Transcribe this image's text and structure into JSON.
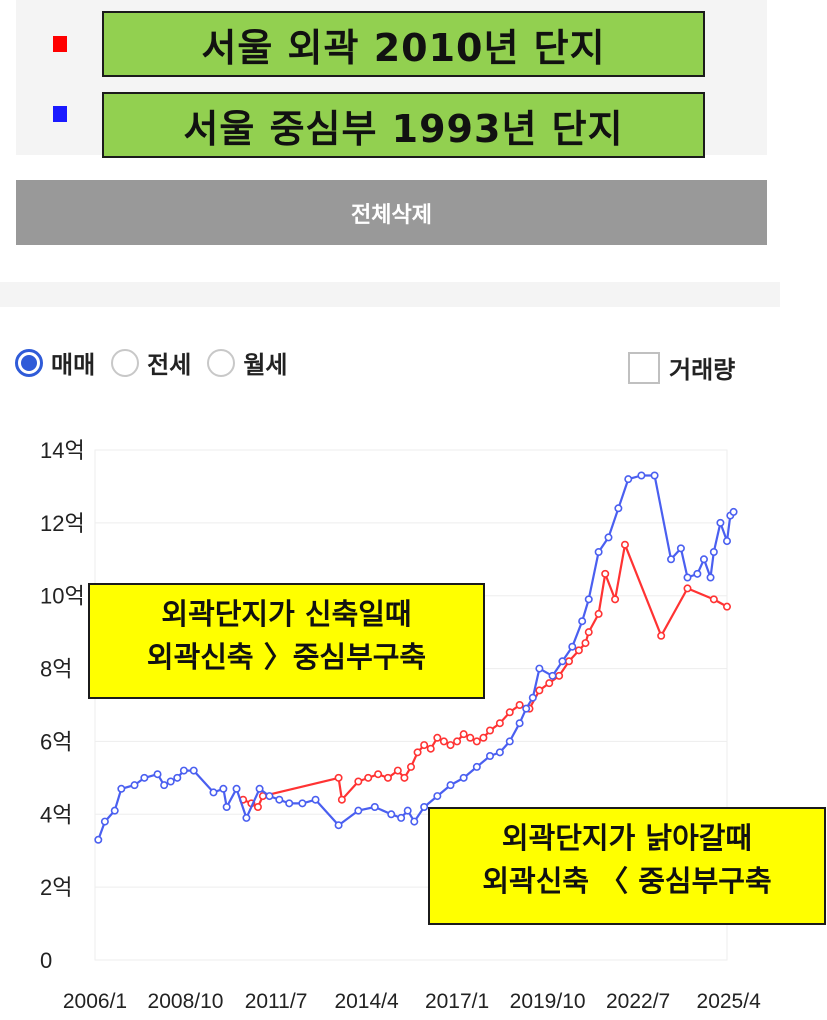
{
  "legend": {
    "items": [
      {
        "label": "서울 외곽 2010년 단지",
        "color": "#ff0000"
      },
      {
        "label": "서울 중심부 1993년 단지",
        "color": "#1a1aff"
      }
    ],
    "label_bg": "#92d050"
  },
  "controls": {
    "delete_all": "전체삭제",
    "radios": [
      {
        "label": "매매",
        "checked": true
      },
      {
        "label": "전세",
        "checked": false
      },
      {
        "label": "월세",
        "checked": false
      }
    ],
    "volume_checkbox": {
      "label": "거래량",
      "checked": false
    }
  },
  "annotations": [
    {
      "lines": [
        "외곽단지가 신축일때",
        "외곽신축 〉중심부구축"
      ],
      "color": "#ffff00"
    },
    {
      "lines": [
        "외곽단지가 낡아갈때",
        "외곽신축 〈 중심부구축"
      ],
      "color": "#ffff00"
    }
  ],
  "chart_data": {
    "type": "line",
    "ylim": [
      0,
      14
    ],
    "yticks": [
      0,
      2,
      4,
      6,
      8,
      10,
      12,
      14
    ],
    "ytick_labels": [
      "0",
      "2억",
      "4억",
      "6억",
      "8억",
      "10억",
      "12억",
      "14억"
    ],
    "xticks": [
      2006.0,
      2008.75,
      2011.5,
      2014.25,
      2017.0,
      2019.75,
      2022.5,
      2025.25
    ],
    "xtick_labels": [
      "2006/1",
      "2008/10",
      "2011/7",
      "2014/4",
      "2017/1",
      "2019/10",
      "2022/7",
      "2025/4"
    ],
    "xlim": [
      2006.0,
      2025.2
    ],
    "grid": true,
    "series": [
      {
        "name": "서울 외곽 2010년 단지",
        "color": "#ff3333",
        "points": [
          [
            2010.5,
            4.4
          ],
          [
            2010.75,
            4.3
          ],
          [
            2010.95,
            4.2
          ],
          [
            2011.1,
            4.5
          ],
          [
            2013.4,
            5.0
          ],
          [
            2013.5,
            4.4
          ],
          [
            2014.0,
            4.9
          ],
          [
            2014.3,
            5.0
          ],
          [
            2014.6,
            5.1
          ],
          [
            2014.9,
            5.0
          ],
          [
            2015.2,
            5.2
          ],
          [
            2015.4,
            5.0
          ],
          [
            2015.6,
            5.3
          ],
          [
            2015.8,
            5.7
          ],
          [
            2016.0,
            5.9
          ],
          [
            2016.2,
            5.8
          ],
          [
            2016.4,
            6.1
          ],
          [
            2016.6,
            6.0
          ],
          [
            2016.8,
            5.9
          ],
          [
            2017.0,
            6.0
          ],
          [
            2017.2,
            6.2
          ],
          [
            2017.4,
            6.1
          ],
          [
            2017.6,
            6.0
          ],
          [
            2017.8,
            6.1
          ],
          [
            2018.0,
            6.3
          ],
          [
            2018.3,
            6.5
          ],
          [
            2018.6,
            6.8
          ],
          [
            2018.9,
            7.0
          ],
          [
            2019.2,
            6.9
          ],
          [
            2019.5,
            7.4
          ],
          [
            2019.8,
            7.6
          ],
          [
            2020.1,
            7.8
          ],
          [
            2020.4,
            8.2
          ],
          [
            2020.7,
            8.5
          ],
          [
            2020.9,
            8.7
          ],
          [
            2021.0,
            9.0
          ],
          [
            2021.3,
            9.5
          ],
          [
            2021.5,
            10.6
          ],
          [
            2021.8,
            9.9
          ],
          [
            2022.1,
            11.4
          ],
          [
            2023.2,
            8.9
          ],
          [
            2024.0,
            10.2
          ],
          [
            2024.8,
            9.9
          ],
          [
            2025.2,
            9.7
          ]
        ]
      },
      {
        "name": "서울 중심부 1993년 단지",
        "color": "#4a5ff0",
        "points": [
          [
            2006.1,
            3.3
          ],
          [
            2006.3,
            3.8
          ],
          [
            2006.6,
            4.1
          ],
          [
            2006.8,
            4.7
          ],
          [
            2007.2,
            4.8
          ],
          [
            2007.5,
            5.0
          ],
          [
            2007.9,
            5.1
          ],
          [
            2008.1,
            4.8
          ],
          [
            2008.3,
            4.9
          ],
          [
            2008.5,
            5.0
          ],
          [
            2008.7,
            5.2
          ],
          [
            2009.0,
            5.2
          ],
          [
            2009.6,
            4.6
          ],
          [
            2009.9,
            4.7
          ],
          [
            2010.0,
            4.2
          ],
          [
            2010.3,
            4.7
          ],
          [
            2010.6,
            3.9
          ],
          [
            2011.0,
            4.7
          ],
          [
            2011.3,
            4.5
          ],
          [
            2011.6,
            4.4
          ],
          [
            2011.9,
            4.3
          ],
          [
            2012.3,
            4.3
          ],
          [
            2012.7,
            4.4
          ],
          [
            2013.4,
            3.7
          ],
          [
            2014.0,
            4.1
          ],
          [
            2014.5,
            4.2
          ],
          [
            2015.0,
            4.0
          ],
          [
            2015.3,
            3.9
          ],
          [
            2015.5,
            4.1
          ],
          [
            2015.7,
            3.8
          ],
          [
            2016.0,
            4.2
          ],
          [
            2016.4,
            4.5
          ],
          [
            2016.8,
            4.8
          ],
          [
            2017.2,
            5.0
          ],
          [
            2017.6,
            5.3
          ],
          [
            2018.0,
            5.6
          ],
          [
            2018.3,
            5.7
          ],
          [
            2018.6,
            6.0
          ],
          [
            2018.9,
            6.5
          ],
          [
            2019.1,
            6.9
          ],
          [
            2019.3,
            7.2
          ],
          [
            2019.5,
            8.0
          ],
          [
            2019.9,
            7.8
          ],
          [
            2020.2,
            8.2
          ],
          [
            2020.5,
            8.6
          ],
          [
            2020.8,
            9.3
          ],
          [
            2021.0,
            9.9
          ],
          [
            2021.3,
            11.2
          ],
          [
            2021.6,
            11.6
          ],
          [
            2021.9,
            12.4
          ],
          [
            2022.2,
            13.2
          ],
          [
            2022.6,
            13.3
          ],
          [
            2023.0,
            13.3
          ],
          [
            2023.5,
            11.0
          ],
          [
            2023.8,
            11.3
          ],
          [
            2024.0,
            10.5
          ],
          [
            2024.3,
            10.6
          ],
          [
            2024.5,
            11.0
          ],
          [
            2024.7,
            10.5
          ],
          [
            2024.8,
            11.2
          ],
          [
            2025.0,
            12.0
          ],
          [
            2025.2,
            11.5
          ],
          [
            2025.3,
            12.2
          ],
          [
            2025.4,
            12.3
          ]
        ]
      }
    ]
  }
}
